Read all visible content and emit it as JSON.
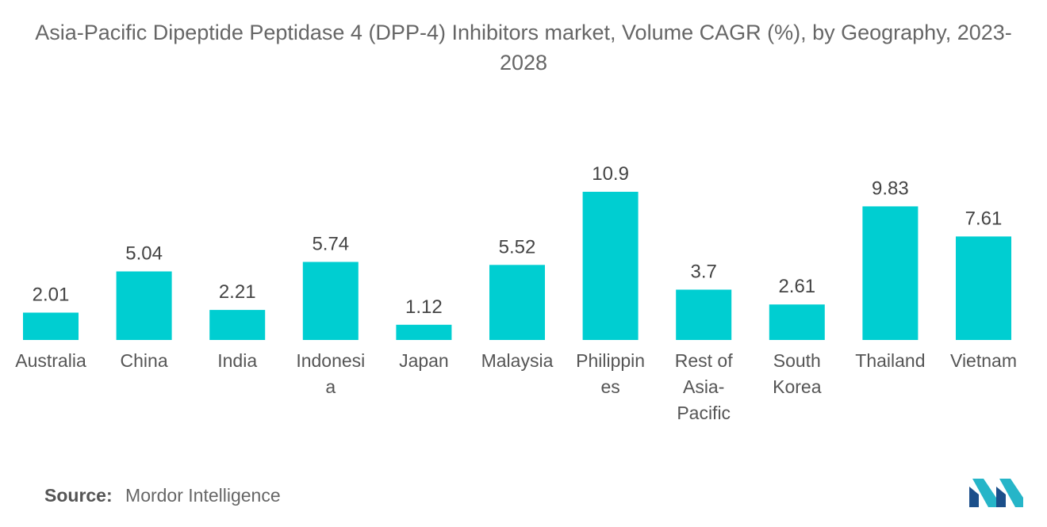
{
  "chart_data": {
    "type": "bar",
    "title": "Asia-Pacific Dipeptide Peptidase 4 (DPP-4) Inhibitors market, Volume CAGR (%), by Geography, 2023-2028",
    "categories": [
      "Australia",
      "China",
      "India",
      "Indonesia",
      "Japan",
      "Malaysia",
      "Philippines",
      "Rest of Asia-Pacific",
      "South Korea",
      "Thailand",
      "Vietnam"
    ],
    "category_lines": [
      [
        "Australia"
      ],
      [
        "China"
      ],
      [
        "India"
      ],
      [
        "Indonesi",
        "a"
      ],
      [
        "Japan"
      ],
      [
        "Malaysia"
      ],
      [
        "Philippin",
        "es"
      ],
      [
        "Rest of",
        "Asia-",
        "Pacific"
      ],
      [
        "South",
        "Korea"
      ],
      [
        "Thailand"
      ],
      [
        "Vietnam"
      ]
    ],
    "values": [
      2.01,
      5.04,
      2.21,
      5.74,
      1.12,
      5.52,
      10.9,
      3.7,
      2.61,
      9.83,
      7.61
    ],
    "value_labels": [
      "2.01",
      "5.04",
      "2.21",
      "5.74",
      "1.12",
      "5.52",
      "10.9",
      "3.7",
      "2.61",
      "9.83",
      "7.61"
    ],
    "xlabel": "",
    "ylabel": "",
    "ylim": [
      0,
      10.9
    ],
    "grid": false,
    "bar_color": "#00CED1"
  },
  "source": {
    "label": "Source:",
    "text": "Mordor Intelligence"
  },
  "logo": {
    "icon": "mordor-intelligence-logo-icon",
    "colors": [
      "#1B4F8A",
      "#26B5C8"
    ]
  }
}
